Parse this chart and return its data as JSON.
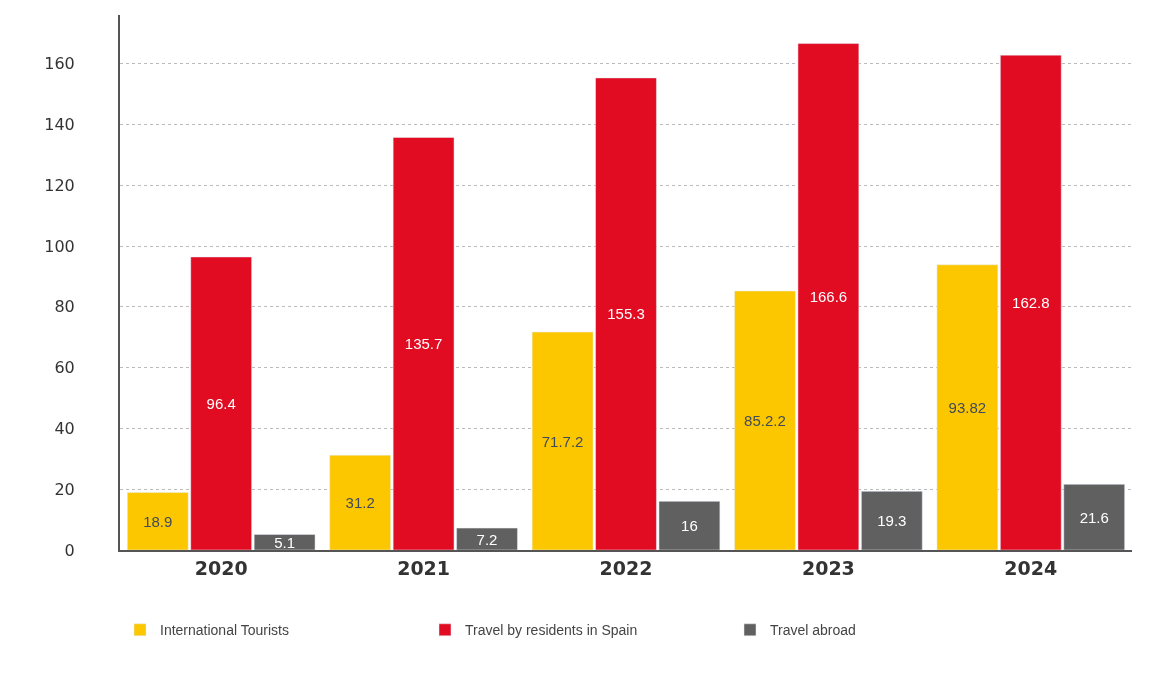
{
  "chart_data": {
    "type": "bar",
    "categories": [
      "2020",
      "2021",
      "2022",
      "2023",
      "2024"
    ],
    "series": [
      {
        "name": "International Tourists",
        "color": "#fdc700",
        "values": [
          18.9,
          31.2,
          71.7,
          85.2,
          93.82
        ],
        "value_labels": [
          "18.9",
          "31.2",
          "71.7.2",
          "85.2.2",
          "93.82"
        ]
      },
      {
        "name": "Travel by residents in Spain",
        "color": "#e10b22",
        "values": [
          96.4,
          135.7,
          155.3,
          166.6,
          162.8
        ],
        "value_labels": [
          "96.4",
          "135.7",
          "155.3",
          "166.6",
          "162.8"
        ]
      },
      {
        "name": "Travel abroad",
        "color": "#606060",
        "values": [
          5.1,
          7.2,
          16,
          19.3,
          21.6
        ],
        "value_labels": [
          "5.1",
          "7.2",
          "16",
          "19.3",
          "21.6"
        ]
      }
    ],
    "ylim": [
      0,
      176
    ],
    "yticks": [
      0,
      20,
      40,
      60,
      80,
      100,
      120,
      140,
      160
    ],
    "grid": "y",
    "legend": "bottom left"
  }
}
